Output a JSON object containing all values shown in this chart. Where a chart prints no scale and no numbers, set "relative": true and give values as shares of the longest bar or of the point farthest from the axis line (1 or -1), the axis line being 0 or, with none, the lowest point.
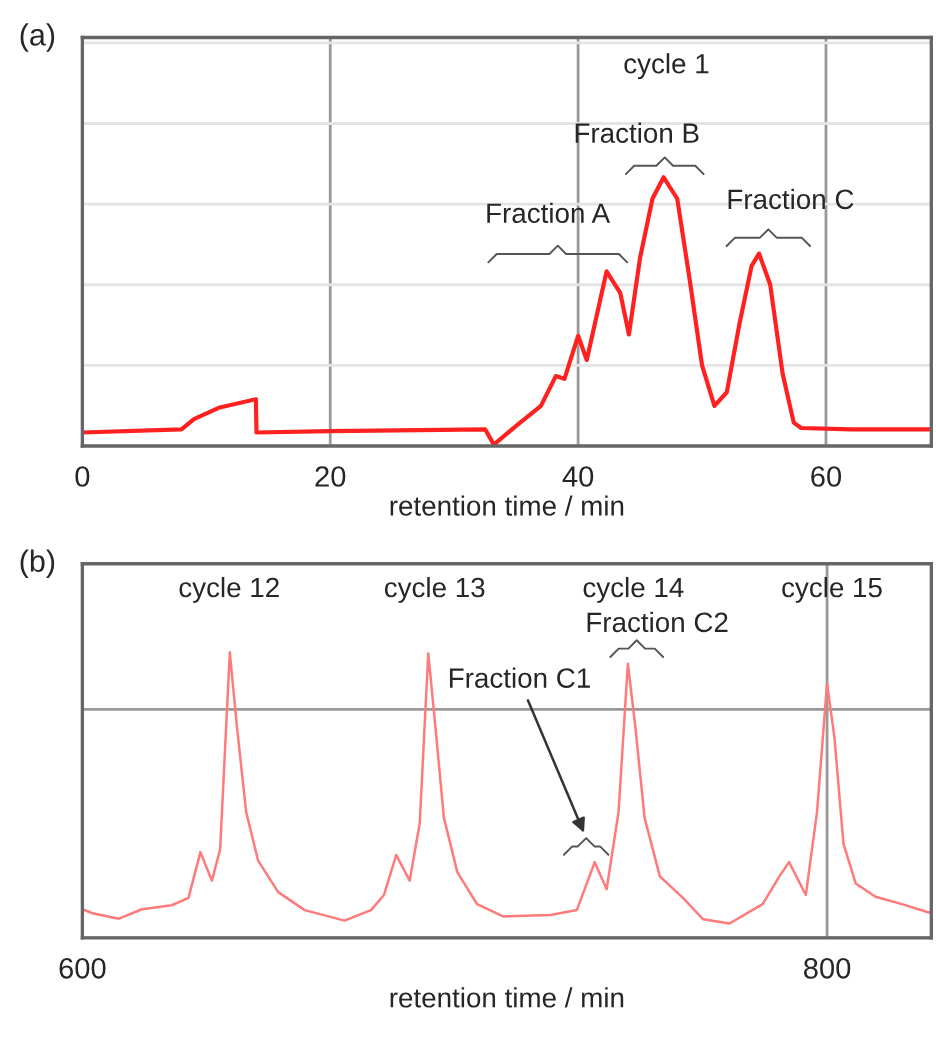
{
  "chart_data": [
    {
      "type": "line",
      "title": "(a)",
      "xlabel": "retention time / min",
      "relative": true,
      "xlim": [
        0,
        68.5
      ],
      "xticks": [
        0,
        20,
        40,
        60
      ],
      "grid": true,
      "legend": false,
      "marker": "none",
      "line_style": "solid",
      "x": [
        0,
        8,
        9,
        11,
        14,
        14.05,
        20,
        32.5,
        33.2,
        35,
        37,
        38.2,
        38.9,
        40,
        40.7,
        42.3,
        43.4,
        44.1,
        45,
        46,
        46.9,
        48,
        49,
        50,
        51,
        52,
        53,
        54,
        54.6,
        55.5,
        56.5,
        57.4,
        58,
        62,
        68.5
      ],
      "series": [
        {
          "color": "#ff2020",
          "values": [
            0.05,
            0.062,
            0.1,
            0.142,
            0.174,
            0.05,
            0.055,
            0.062,
            0.005,
            0.075,
            0.149,
            0.26,
            0.25,
            0.41,
            0.32,
            0.65,
            0.57,
            0.415,
            0.7,
            0.92,
            1.0,
            0.92,
            0.62,
            0.3,
            0.149,
            0.2,
            0.45,
            0.67,
            0.716,
            0.6,
            0.27,
            0.087,
            0.067,
            0.062,
            0.062
          ]
        }
      ],
      "annotations": [
        "cycle 1",
        "Fraction A",
        "Fraction B",
        "Fraction C"
      ]
    },
    {
      "type": "line",
      "title": "(b)",
      "xlabel": "retention time / min",
      "relative": true,
      "xlim": [
        600,
        828
      ],
      "xticks": [
        600,
        800
      ],
      "grid": true,
      "legend": false,
      "marker": "none",
      "line_style": "solid",
      "x": [
        600,
        602.7,
        609.8,
        616,
        624,
        628.5,
        631.7,
        634.8,
        637,
        639.6,
        641.5,
        644,
        647.2,
        652.6,
        659.7,
        670.4,
        677.5,
        681,
        684.3,
        687.9,
        690.6,
        692.9,
        694.8,
        697.1,
        700.7,
        706,
        713,
        725.7,
        732.8,
        737.6,
        740.8,
        744,
        746.5,
        748.5,
        751,
        755.1,
        761.3,
        766.7,
        773.8,
        782.7,
        787.2,
        789.8,
        794.3,
        797.3,
        800,
        802,
        804.4,
        807.7,
        813,
        820.1,
        828
      ],
      "series": [
        {
          "color": "#ff7a7a",
          "values": [
            0.1,
            0.086,
            0.067,
            0.1,
            0.114,
            0.14,
            0.3,
            0.2,
            0.31,
            1.0,
            0.74,
            0.44,
            0.27,
            0.16,
            0.097,
            0.06,
            0.097,
            0.15,
            0.29,
            0.2,
            0.4,
            0.996,
            0.74,
            0.42,
            0.23,
            0.118,
            0.075,
            0.08,
            0.097,
            0.265,
            0.17,
            0.44,
            0.96,
            0.74,
            0.42,
            0.215,
            0.14,
            0.065,
            0.05,
            0.118,
            0.215,
            0.265,
            0.15,
            0.44,
            0.89,
            0.7,
            0.33,
            0.19,
            0.144,
            0.118,
            0.086
          ]
        }
      ],
      "annotations": [
        "cycle 12",
        "cycle 13",
        "cycle 14",
        "cycle 15",
        "Fraction C2",
        {
          "text": "Fraction C1",
          "x": 735.3,
          "y": 0.32
        }
      ]
    }
  ]
}
